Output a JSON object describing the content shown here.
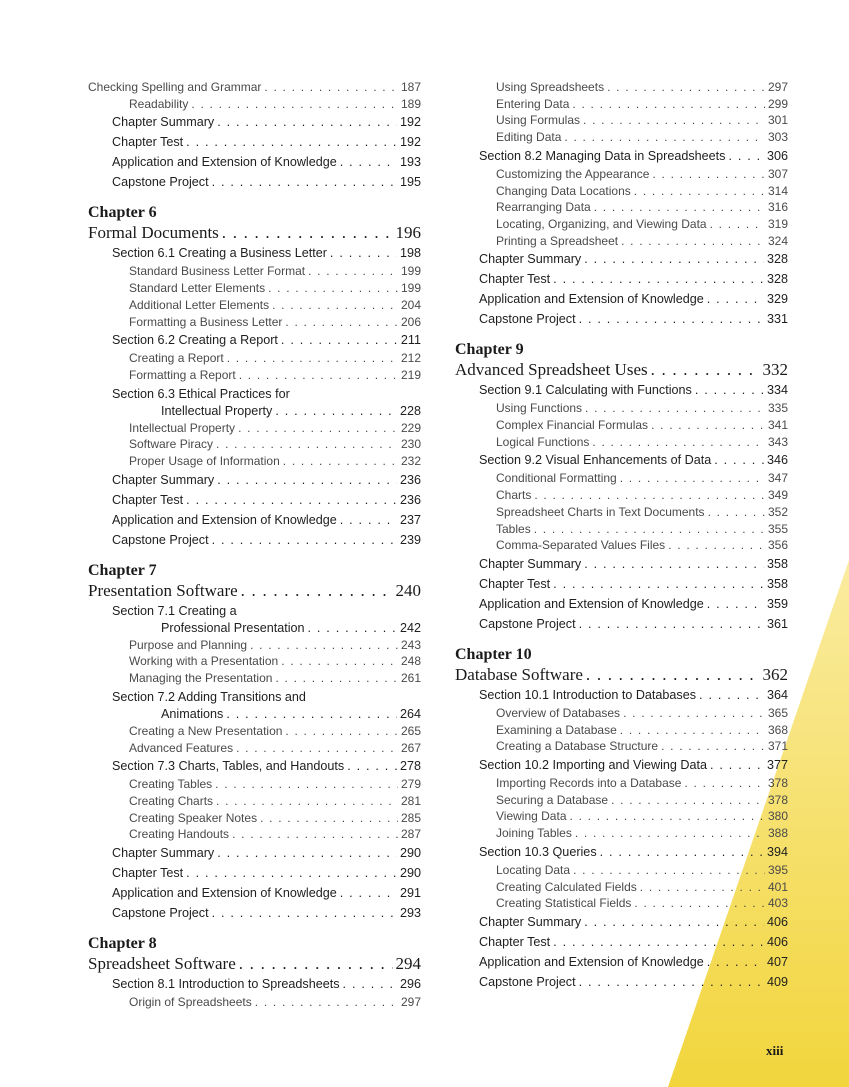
{
  "colors": {
    "accent_light": "#faeca0",
    "accent": "#f2d53c"
  },
  "columns": [
    {
      "entries": [
        {
          "type": "sub",
          "flush": true,
          "label": "Checking Spelling and Grammar",
          "page": "187"
        },
        {
          "type": "sub",
          "label": "Readability",
          "page": "189"
        },
        {
          "type": "main",
          "label": "Chapter Summary",
          "page": "192"
        },
        {
          "type": "main",
          "label": "Chapter Test",
          "page": "192"
        },
        {
          "type": "main",
          "label": "Application and Extension of Knowledge",
          "page": "193"
        },
        {
          "type": "main",
          "label": "Capstone Project",
          "page": "195"
        },
        {
          "type": "chapter",
          "number": "Chapter 6",
          "title": "Formal Documents",
          "page": "196"
        },
        {
          "type": "main",
          "label": "Section 6.1 Creating a Business Letter",
          "page": "198"
        },
        {
          "type": "sub",
          "label": "Standard Business Letter Format",
          "page": "199"
        },
        {
          "type": "sub",
          "label": "Standard Letter Elements",
          "page": "199"
        },
        {
          "type": "sub",
          "label": "Additional Letter Elements",
          "page": "204"
        },
        {
          "type": "sub",
          "label": "Formatting a Business Letter",
          "page": "206"
        },
        {
          "type": "main",
          "label": "Section 6.2 Creating a Report",
          "page": "211"
        },
        {
          "type": "sub",
          "label": "Creating a Report",
          "page": "212"
        },
        {
          "type": "sub",
          "label": "Formatting a Report",
          "page": "219"
        },
        {
          "type": "wrap",
          "label": "Section 6.3 Ethical Practices for",
          "label2": "Intellectual Property",
          "page": "228"
        },
        {
          "type": "sub",
          "label": "Intellectual Property",
          "page": "229"
        },
        {
          "type": "sub",
          "label": "Software Piracy",
          "page": "230"
        },
        {
          "type": "sub",
          "label": "Proper Usage of Information",
          "page": "232"
        },
        {
          "type": "main",
          "label": "Chapter Summary",
          "page": "236"
        },
        {
          "type": "main",
          "label": "Chapter Test",
          "page": "236"
        },
        {
          "type": "main",
          "label": "Application and Extension of Knowledge",
          "page": "237"
        },
        {
          "type": "main",
          "label": "Capstone Project",
          "page": "239"
        },
        {
          "type": "chapter",
          "number": "Chapter 7",
          "title": "Presentation Software",
          "page": "240"
        },
        {
          "type": "wrap",
          "label": "Section 7.1 Creating a",
          "label2": "Professional Presentation",
          "page": "242"
        },
        {
          "type": "sub",
          "label": "Purpose and Planning",
          "page": "243"
        },
        {
          "type": "sub",
          "label": "Working with a Presentation",
          "page": "248"
        },
        {
          "type": "sub",
          "label": "Managing the Presentation",
          "page": "261"
        },
        {
          "type": "wrap",
          "label": "Section 7.2 Adding Transitions and",
          "label2": "Animations",
          "page": "264"
        },
        {
          "type": "sub",
          "label": "Creating a New Presentation",
          "page": "265"
        },
        {
          "type": "sub",
          "label": "Advanced Features",
          "page": "267"
        },
        {
          "type": "main",
          "label": "Section 7.3 Charts, Tables, and Handouts",
          "page": "278"
        },
        {
          "type": "sub",
          "label": "Creating Tables",
          "page": "279"
        },
        {
          "type": "sub",
          "label": "Creating Charts",
          "page": "281"
        },
        {
          "type": "sub",
          "label": "Creating Speaker Notes",
          "page": "285"
        },
        {
          "type": "sub",
          "label": "Creating Handouts",
          "page": "287"
        },
        {
          "type": "main",
          "label": "Chapter Summary",
          "page": "290"
        },
        {
          "type": "main",
          "label": "Chapter Test",
          "page": "290"
        },
        {
          "type": "main",
          "label": "Application and Extension of Knowledge",
          "page": "291"
        },
        {
          "type": "main",
          "label": "Capstone Project",
          "page": "293"
        },
        {
          "type": "chapter",
          "number": "Chapter 8",
          "title": "Spreadsheet Software",
          "page": "294"
        },
        {
          "type": "main",
          "label": "Section 8.1 Introduction to Spreadsheets",
          "page": "296"
        },
        {
          "type": "sub",
          "label": "Origin of Spreadsheets",
          "page": "297"
        }
      ]
    },
    {
      "entries": [
        {
          "type": "sub",
          "label": "Using Spreadsheets",
          "page": "297"
        },
        {
          "type": "sub",
          "label": "Entering Data",
          "page": "299"
        },
        {
          "type": "sub",
          "label": "Using Formulas",
          "page": "301"
        },
        {
          "type": "sub",
          "label": "Editing Data",
          "page": "303"
        },
        {
          "type": "main",
          "label": "Section 8.2 Managing Data in Spreadsheets",
          "page": "306"
        },
        {
          "type": "sub",
          "label": "Customizing the Appearance",
          "page": "307"
        },
        {
          "type": "sub",
          "label": "Changing Data Locations",
          "page": "314"
        },
        {
          "type": "sub",
          "label": "Rearranging Data",
          "page": "316"
        },
        {
          "type": "sub",
          "label": "Locating, Organizing, and Viewing Data",
          "page": "319"
        },
        {
          "type": "sub",
          "label": "Printing a Spreadsheet",
          "page": "324"
        },
        {
          "type": "main",
          "label": "Chapter Summary",
          "page": "328"
        },
        {
          "type": "main",
          "label": "Chapter Test",
          "page": "328"
        },
        {
          "type": "main",
          "label": "Application and Extension of Knowledge",
          "page": "329"
        },
        {
          "type": "main",
          "label": "Capstone Project",
          "page": "331"
        },
        {
          "type": "chapter",
          "number": "Chapter 9",
          "title": "Advanced Spreadsheet Uses",
          "page": "332"
        },
        {
          "type": "main",
          "label": "Section 9.1 Calculating with Functions",
          "page": "334"
        },
        {
          "type": "sub",
          "label": "Using Functions",
          "page": "335"
        },
        {
          "type": "sub",
          "label": "Complex Financial Formulas",
          "page": "341"
        },
        {
          "type": "sub",
          "label": "Logical Functions",
          "page": "343"
        },
        {
          "type": "main",
          "label": "Section 9.2 Visual Enhancements of Data",
          "page": "346"
        },
        {
          "type": "sub",
          "label": "Conditional Formatting",
          "page": "347"
        },
        {
          "type": "sub",
          "label": "Charts",
          "page": "349"
        },
        {
          "type": "sub",
          "label": "Spreadsheet Charts in Text Documents",
          "page": "352"
        },
        {
          "type": "sub",
          "label": "Tables",
          "page": "355"
        },
        {
          "type": "sub",
          "label": "Comma-Separated Values Files",
          "page": "356"
        },
        {
          "type": "main",
          "label": "Chapter Summary",
          "page": "358"
        },
        {
          "type": "main",
          "label": "Chapter Test",
          "page": "358"
        },
        {
          "type": "main",
          "label": "Application and Extension of Knowledge",
          "page": "359"
        },
        {
          "type": "main",
          "label": "Capstone Project",
          "page": "361"
        },
        {
          "type": "chapter",
          "number": "Chapter 10",
          "title": "Database Software",
          "page": "362"
        },
        {
          "type": "main",
          "label": "Section 10.1 Introduction to Databases",
          "page": "364"
        },
        {
          "type": "sub",
          "label": "Overview of Databases",
          "page": "365"
        },
        {
          "type": "sub",
          "label": "Examining a Database",
          "page": "368"
        },
        {
          "type": "sub",
          "label": "Creating a Database Structure",
          "page": "371"
        },
        {
          "type": "main",
          "label": "Section 10.2 Importing and Viewing Data",
          "page": "377"
        },
        {
          "type": "sub",
          "label": "Importing Records into a Database",
          "page": "378"
        },
        {
          "type": "sub",
          "label": "Securing a Database",
          "page": "378"
        },
        {
          "type": "sub",
          "label": "Viewing Data",
          "page": "380"
        },
        {
          "type": "sub",
          "label": "Joining Tables",
          "page": "388"
        },
        {
          "type": "main",
          "label": "Section 10.3 Queries",
          "page": "394"
        },
        {
          "type": "sub",
          "label": "Locating Data",
          "page": "395"
        },
        {
          "type": "sub",
          "label": "Creating Calculated Fields",
          "page": "401"
        },
        {
          "type": "sub",
          "label": "Creating Statistical Fields",
          "page": "403"
        },
        {
          "type": "main",
          "label": "Chapter Summary",
          "page": "406"
        },
        {
          "type": "main",
          "label": "Chapter Test",
          "page": "406"
        },
        {
          "type": "main",
          "label": "Application and Extension of Knowledge",
          "page": "407"
        },
        {
          "type": "main",
          "label": "Capstone Project",
          "page": "409"
        }
      ]
    }
  ],
  "folio": "xiii"
}
